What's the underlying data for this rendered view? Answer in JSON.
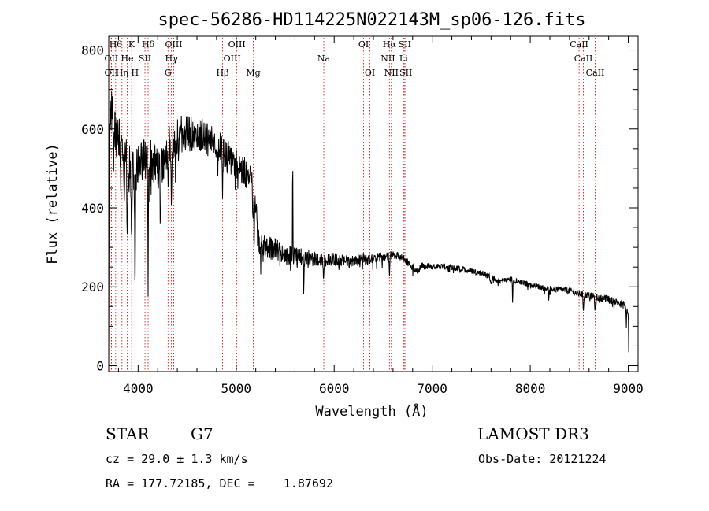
{
  "chart_data": {
    "type": "line",
    "title": "spec-56286-HD114225N022143M_sp06-126.fits",
    "xlabel": "Wavelength (Å)",
    "ylabel": "Flux (relative)",
    "xlim": [
      3700,
      9100
    ],
    "ylim": [
      -15,
      835
    ],
    "xticks": [
      4000,
      5000,
      6000,
      7000,
      8000,
      9000
    ],
    "xtick_labels": [
      "4000",
      "5000",
      "6000",
      "7000",
      "8000",
      "9000"
    ],
    "yticks": [
      0,
      200,
      400,
      600,
      800
    ],
    "ytick_labels": [
      "0",
      "200",
      "400",
      "600",
      "800"
    ],
    "series": [
      {
        "name": "spectrum",
        "continuum": [
          [
            3700,
            0
          ],
          [
            3705,
            600
          ],
          [
            3730,
            640
          ],
          [
            3760,
            610
          ],
          [
            3800,
            580
          ],
          [
            3850,
            560
          ],
          [
            3900,
            510
          ],
          [
            3950,
            500
          ],
          [
            4000,
            505
          ],
          [
            4050,
            520
          ],
          [
            4100,
            530
          ],
          [
            4150,
            520
          ],
          [
            4200,
            500
          ],
          [
            4250,
            500
          ],
          [
            4300,
            560
          ],
          [
            4350,
            560
          ],
          [
            4400,
            580
          ],
          [
            4450,
            590
          ],
          [
            4500,
            590
          ],
          [
            4600,
            590
          ],
          [
            4700,
            575
          ],
          [
            4800,
            560
          ],
          [
            4900,
            535
          ],
          [
            5000,
            510
          ],
          [
            5100,
            490
          ],
          [
            5180,
            455
          ],
          [
            5200,
            420
          ],
          [
            5220,
            320
          ],
          [
            5300,
            300
          ],
          [
            5400,
            295
          ],
          [
            5500,
            280
          ],
          [
            5600,
            278
          ],
          [
            5700,
            275
          ],
          [
            5800,
            272
          ],
          [
            5900,
            268
          ],
          [
            6000,
            270
          ],
          [
            6100,
            265
          ],
          [
            6200,
            265
          ],
          [
            6300,
            268
          ],
          [
            6400,
            270
          ],
          [
            6500,
            277
          ],
          [
            6600,
            280
          ],
          [
            6700,
            275
          ],
          [
            6800,
            250
          ],
          [
            6850,
            240
          ],
          [
            6900,
            255
          ],
          [
            7000,
            250
          ],
          [
            7100,
            252
          ],
          [
            7200,
            248
          ],
          [
            7300,
            245
          ],
          [
            7400,
            240
          ],
          [
            7500,
            235
          ],
          [
            7600,
            225
          ],
          [
            7700,
            215
          ],
          [
            7800,
            220
          ],
          [
            7900,
            212
          ],
          [
            8000,
            205
          ],
          [
            8100,
            200
          ],
          [
            8200,
            195
          ],
          [
            8300,
            193
          ],
          [
            8400,
            190
          ],
          [
            8500,
            182
          ],
          [
            8600,
            178
          ],
          [
            8700,
            172
          ],
          [
            8800,
            168
          ],
          [
            8900,
            160
          ],
          [
            8950,
            158
          ],
          [
            9000,
            130
          ],
          [
            9005,
            20
          ]
        ],
        "noise": [
          [
            3700,
            60
          ],
          [
            4300,
            55
          ],
          [
            4600,
            45
          ],
          [
            5100,
            40
          ],
          [
            5300,
            30
          ],
          [
            5800,
            18
          ],
          [
            6700,
            10
          ],
          [
            7000,
            8
          ],
          [
            8000,
            7
          ],
          [
            9000,
            10
          ]
        ],
        "features": [
          [
            3750,
            120,
            6
          ],
          [
            3820,
            120,
            6
          ],
          [
            3860,
            150,
            5
          ],
          [
            3889,
            160,
            5
          ],
          [
            3934,
            200,
            6
          ],
          [
            3968,
            280,
            6
          ],
          [
            4102,
            300,
            5
          ],
          [
            4227,
            100,
            4
          ],
          [
            4307,
            150,
            5
          ],
          [
            4340,
            120,
            5
          ],
          [
            4383,
            80,
            4
          ],
          [
            4861,
            110,
            5
          ],
          [
            5170,
            80,
            6
          ],
          [
            5183,
            150,
            4
          ],
          [
            5270,
            40,
            6
          ],
          [
            5577,
            -250,
            3
          ],
          [
            5690,
            90,
            3
          ],
          [
            5893,
            60,
            5
          ],
          [
            6300,
            -20,
            3
          ],
          [
            6563,
            50,
            5
          ],
          [
            7600,
            15,
            10
          ],
          [
            7820,
            65,
            3
          ],
          [
            8190,
            30,
            4
          ],
          [
            8542,
            40,
            5
          ],
          [
            8662,
            40,
            5
          ],
          [
            8980,
            40,
            3
          ]
        ]
      }
    ],
    "lines": [
      {
        "label": "Hθ",
        "x": 3771,
        "row": 0
      },
      {
        "label": "OII",
        "x": 3727,
        "row": 1
      },
      {
        "label": "OII",
        "x": 3727,
        "row": 2
      },
      {
        "label": "He",
        "x": 3889,
        "row": 1
      },
      {
        "label": "Hη",
        "x": 3835,
        "row": 2
      },
      {
        "label": "K",
        "x": 3934,
        "row": 0
      },
      {
        "label": "H",
        "x": 3968,
        "row": 2
      },
      {
        "label": "SII",
        "x": 4070,
        "row": 1
      },
      {
        "label": "Hδ",
        "x": 4102,
        "row": 0
      },
      {
        "label": "OIII",
        "x": 4363,
        "row": 0
      },
      {
        "label": "Hγ",
        "x": 4340,
        "row": 1
      },
      {
        "label": "G",
        "x": 4305,
        "row": 2
      },
      {
        "label": "Hβ",
        "x": 4861,
        "row": 2
      },
      {
        "label": "OIII",
        "x": 5007,
        "row": 0
      },
      {
        "label": "OIII",
        "x": 4959,
        "row": 1
      },
      {
        "label": "Mg",
        "x": 5175,
        "row": 2
      },
      {
        "label": "Na",
        "x": 5894,
        "row": 1
      },
      {
        "label": "OI",
        "x": 6300,
        "row": 0
      },
      {
        "label": "OI",
        "x": 6364,
        "row": 2
      },
      {
        "label": "Hα",
        "x": 6563,
        "row": 0
      },
      {
        "label": "SII",
        "x": 6720,
        "row": 0
      },
      {
        "label": "NII",
        "x": 6548,
        "row": 1
      },
      {
        "label": "Li",
        "x": 6708,
        "row": 1
      },
      {
        "label": "NII",
        "x": 6583,
        "row": 2
      },
      {
        "label": "SII",
        "x": 6731,
        "row": 2
      },
      {
        "label": "CaII",
        "x": 8498,
        "row": 0
      },
      {
        "label": "CaII",
        "x": 8542,
        "row": 1
      },
      {
        "label": "CaII",
        "x": 8662,
        "row": 2
      }
    ]
  },
  "info": {
    "class": "STAR",
    "subclass": "G7",
    "survey": "LAMOST DR3",
    "cz": "cz = 29.0 ± 1.3 km/s",
    "obs_date": "Obs-Date: 20121224",
    "coords": "RA = 177.72185, DEC =    1.87692"
  },
  "colors": {
    "axis": "#000000",
    "spectrum": "#000000",
    "line_markers": "#cc0000"
  }
}
